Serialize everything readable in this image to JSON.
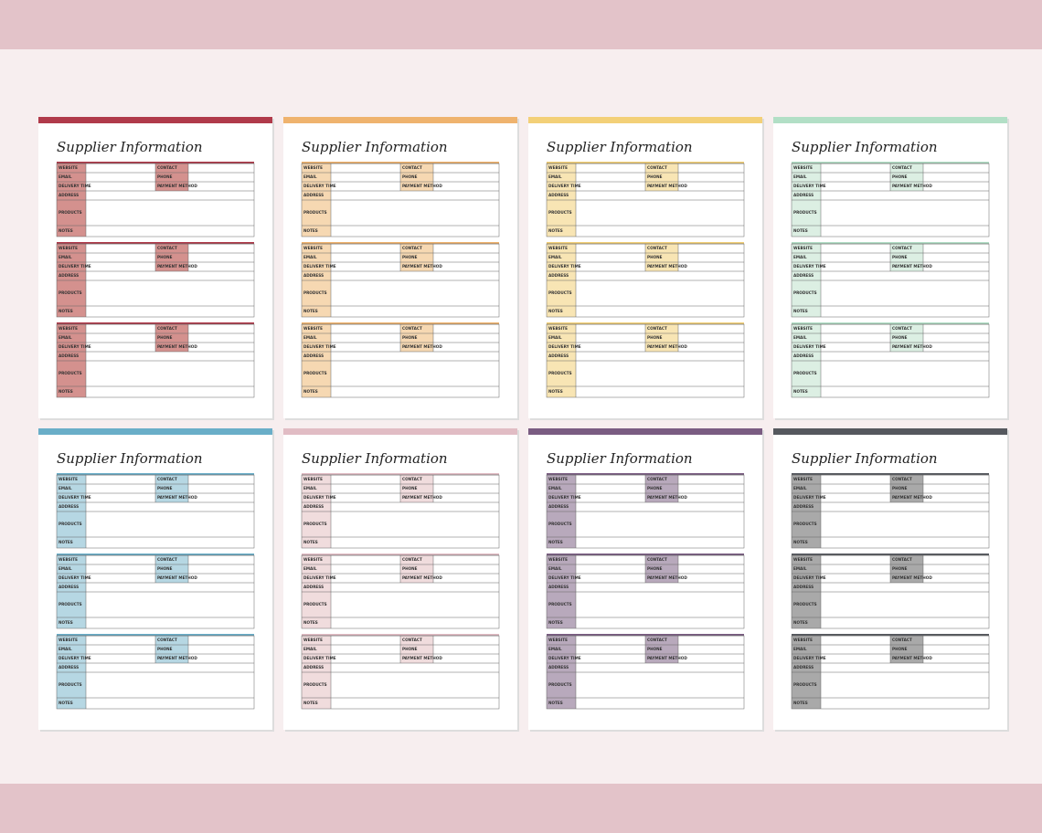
{
  "pages": [
    {
      "title": "Supplier Information",
      "accent": "#b03a4a",
      "tint": "#d4918e",
      "sections": [
        [
          "WEBSITE",
          "CONTACT",
          "EMAIL",
          "PHONE",
          "DELIVERY TIME",
          "PAYMENT METHOD",
          "ADDRESS",
          "PRODUCTS",
          "NOTES"
        ],
        [
          "WEBSITE",
          "CONTACT",
          "EMAIL",
          "PHONE",
          "DELIVERY TIME",
          "PAYMENT METHOD",
          "ADDRESS",
          "PRODUCTS",
          "NOTES"
        ],
        [
          "WEBSITE",
          "CONTACT",
          "EMAIL",
          "PHONE",
          "DELIVERY TIME",
          "PAYMENT METHOD",
          "ADDRESS",
          "PRODUCTS",
          "NOTES"
        ]
      ]
    },
    {
      "title": "Supplier Information",
      "accent": "#efb36e",
      "tint": "#f6d8b2",
      "sections": [
        [
          "WEBSITE",
          "CONTACT",
          "EMAIL",
          "PHONE",
          "DELIVERY TIME",
          "PAYMENT METHOD",
          "ADDRESS",
          "PRODUCTS",
          "NOTES"
        ],
        [
          "WEBSITE",
          "CONTACT",
          "EMAIL",
          "PHONE",
          "DELIVERY TIME",
          "PAYMENT METHOD",
          "ADDRESS",
          "PRODUCTS",
          "NOTES"
        ],
        [
          "WEBSITE",
          "CONTACT",
          "EMAIL",
          "PHONE",
          "DELIVERY TIME",
          "PAYMENT METHOD",
          "ADDRESS",
          "PRODUCTS",
          "NOTES"
        ]
      ]
    },
    {
      "title": "Supplier Information",
      "accent": "#f3d078",
      "tint": "#f8e5b4",
      "sections": [
        [
          "WEBSITE",
          "CONTACT",
          "EMAIL",
          "PHONE",
          "DELIVERY TIME",
          "PAYMENT METHOD",
          "ADDRESS",
          "PRODUCTS",
          "NOTES"
        ],
        [
          "WEBSITE",
          "CONTACT",
          "EMAIL",
          "PHONE",
          "DELIVERY TIME",
          "PAYMENT METHOD",
          "ADDRESS",
          "PRODUCTS",
          "NOTES"
        ],
        [
          "WEBSITE",
          "CONTACT",
          "EMAIL",
          "PHONE",
          "DELIVERY TIME",
          "PAYMENT METHOD",
          "ADDRESS",
          "PRODUCTS",
          "NOTES"
        ]
      ]
    },
    {
      "title": "Supplier Information",
      "accent": "#b2dfc6",
      "tint": "#dcefe3",
      "sections": [
        [
          "WEBSITE",
          "CONTACT",
          "EMAIL",
          "PHONE",
          "DELIVERY TIME",
          "PAYMENT METHOD",
          "ADDRESS",
          "PRODUCTS",
          "NOTES"
        ],
        [
          "WEBSITE",
          "CONTACT",
          "EMAIL",
          "PHONE",
          "DELIVERY TIME",
          "PAYMENT METHOD",
          "ADDRESS",
          "PRODUCTS",
          "NOTES"
        ],
        [
          "WEBSITE",
          "CONTACT",
          "EMAIL",
          "PHONE",
          "DELIVERY TIME",
          "PAYMENT METHOD",
          "ADDRESS",
          "PRODUCTS",
          "NOTES"
        ]
      ]
    },
    {
      "title": "Supplier Information",
      "accent": "#6aaec8",
      "tint": "#b6d7e3",
      "sections": [
        [
          "WEBSITE",
          "CONTACT",
          "EMAIL",
          "PHONE",
          "DELIVERY TIME",
          "PAYMENT METHOD",
          "ADDRESS",
          "PRODUCTS",
          "NOTES"
        ],
        [
          "WEBSITE",
          "CONTACT",
          "EMAIL",
          "PHONE",
          "DELIVERY TIME",
          "PAYMENT METHOD",
          "ADDRESS",
          "PRODUCTS",
          "NOTES"
        ],
        [
          "WEBSITE",
          "CONTACT",
          "EMAIL",
          "PHONE",
          "DELIVERY TIME",
          "PAYMENT METHOD",
          "ADDRESS",
          "PRODUCTS",
          "NOTES"
        ]
      ]
    },
    {
      "title": "Supplier Information",
      "accent": "#e1bcc4",
      "tint": "#f0dcdd",
      "sections": [
        [
          "WEBSITE",
          "CONTACT",
          "EMAIL",
          "PHONE",
          "DELIVERY TIME",
          "PAYMENT METHOD",
          "ADDRESS",
          "PRODUCTS",
          "NOTES"
        ],
        [
          "WEBSITE",
          "CONTACT",
          "EMAIL",
          "PHONE",
          "DELIVERY TIME",
          "PAYMENT METHOD",
          "ADDRESS",
          "PRODUCTS",
          "NOTES"
        ],
        [
          "WEBSITE",
          "CONTACT",
          "EMAIL",
          "PHONE",
          "DELIVERY TIME",
          "PAYMENT METHOD",
          "ADDRESS",
          "PRODUCTS",
          "NOTES"
        ]
      ]
    },
    {
      "title": "Supplier Information",
      "accent": "#7a5c82",
      "tint": "#b8a9bc",
      "sections": [
        [
          "WEBSITE",
          "CONTACT",
          "EMAIL",
          "PHONE",
          "DELIVERY TIME",
          "PAYMENT METHOD",
          "ADDRESS",
          "PRODUCTS",
          "NOTES"
        ],
        [
          "WEBSITE",
          "CONTACT",
          "EMAIL",
          "PHONE",
          "DELIVERY TIME",
          "PAYMENT METHOD",
          "ADDRESS",
          "PRODUCTS",
          "NOTES"
        ],
        [
          "WEBSITE",
          "CONTACT",
          "EMAIL",
          "PHONE",
          "DELIVERY TIME",
          "PAYMENT METHOD",
          "ADDRESS",
          "PRODUCTS",
          "NOTES"
        ]
      ]
    },
    {
      "title": "Supplier Information",
      "accent": "#55585e",
      "tint": "#a9a9a9",
      "sections": [
        [
          "WEBSITE",
          "CONTACT",
          "EMAIL",
          "PHONE",
          "DELIVERY TIME",
          "PAYMENT METHOD",
          "ADDRESS",
          "PRODUCTS",
          "NOTES"
        ],
        [
          "WEBSITE",
          "CONTACT",
          "EMAIL",
          "PHONE",
          "DELIVERY TIME",
          "PAYMENT METHOD",
          "ADDRESS",
          "PRODUCTS",
          "NOTES"
        ],
        [
          "WEBSITE",
          "CONTACT",
          "EMAIL",
          "PHONE",
          "DELIVERY TIME",
          "PAYMENT METHOD",
          "ADDRESS",
          "PRODUCTS",
          "NOTES"
        ]
      ]
    }
  ]
}
